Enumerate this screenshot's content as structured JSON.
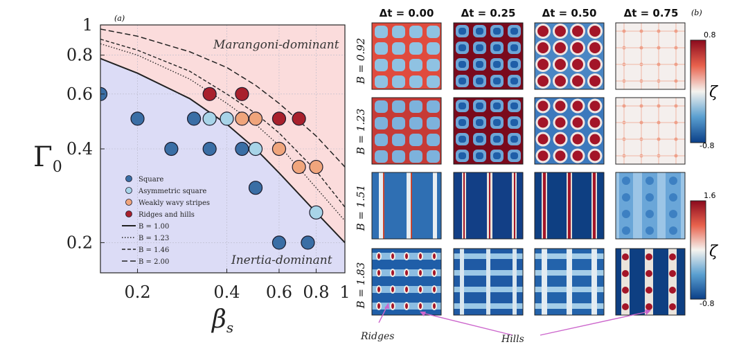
{
  "panel_a": {
    "label": "(a)",
    "region_top_label": "Marangoni-dominant",
    "region_bottom_label": "Inertia-dominant",
    "y_axis_label": "Γ",
    "y_axis_label_sub": "0",
    "x_axis_label": "β",
    "x_axis_label_sub": "s",
    "colors": {
      "top_region": "#fbdcdc",
      "bottom_region": "#dcdcf6"
    }
  },
  "panel_b": {
    "label": "(b)",
    "column_headers": [
      "Δt = 0.00",
      "Δt = 0.25",
      "Δt = 0.50",
      "Δt = 0.75"
    ],
    "row_labels": [
      "B = 0.92",
      "B = 1.23",
      "B = 1.51",
      "B = 1.83"
    ],
    "colorbar_top": {
      "symbol": "ζ",
      "max_label": "0.8",
      "min_label": "-0.8"
    },
    "colorbar_bottom": {
      "symbol": "ζ",
      "max_label": "1.6",
      "min_label": "-0.8"
    },
    "annotations": {
      "ridges": "Ridges",
      "hills": "Hills"
    },
    "colors": {
      "annotation_arrow": "#cc66cc"
    }
  },
  "chart_data": [
    {
      "type": "scatter",
      "x_scale": "log",
      "y_scale": "log",
      "xlim": [
        0.15,
        1.0
      ],
      "ylim": [
        0.16,
        1.0
      ],
      "xticks": [
        0.2,
        0.4,
        0.6,
        0.8,
        1.0
      ],
      "xtick_labels": [
        "0.2",
        "0.4",
        "0.6",
        "0.8",
        "1"
      ],
      "yticks": [
        0.2,
        0.4,
        0.6,
        0.8,
        1.0
      ],
      "ytick_labels": [
        "0.2",
        "0.4",
        "0.6",
        "0.8",
        "1"
      ],
      "grid": true,
      "legend_position": "lower-left",
      "series": [
        {
          "name": "Square",
          "kind": "marker",
          "color": "#3a6ea5",
          "points": [
            [
              0.15,
              0.6
            ],
            [
              0.2,
              0.5
            ],
            [
              0.26,
              0.4
            ],
            [
              0.31,
              0.5
            ],
            [
              0.35,
              0.4
            ],
            [
              0.45,
              0.4
            ],
            [
              0.5,
              0.3
            ],
            [
              0.6,
              0.2
            ],
            [
              0.75,
              0.2
            ]
          ]
        },
        {
          "name": "Asymmetric square",
          "kind": "marker",
          "color": "#a8d4e8",
          "points": [
            [
              0.35,
              0.5
            ],
            [
              0.4,
              0.5
            ],
            [
              0.5,
              0.4
            ],
            [
              0.8,
              0.25
            ]
          ]
        },
        {
          "name": "Weakly wavy stripes",
          "kind": "marker",
          "color": "#f0a57c",
          "points": [
            [
              0.45,
              0.5
            ],
            [
              0.5,
              0.5
            ],
            [
              0.6,
              0.4
            ],
            [
              0.7,
              0.35
            ],
            [
              0.8,
              0.35
            ]
          ]
        },
        {
          "name": "Ridges and hills",
          "kind": "marker",
          "color": "#a8202c",
          "points": [
            [
              0.35,
              0.6
            ],
            [
              0.45,
              0.6
            ],
            [
              0.6,
              0.5
            ],
            [
              0.7,
              0.5
            ]
          ]
        },
        {
          "name": "B = 1.00",
          "kind": "line",
          "style": "solid",
          "points": [
            [
              0.15,
              0.78
            ],
            [
              0.2,
              0.7
            ],
            [
              0.3,
              0.58
            ],
            [
              0.4,
              0.48
            ],
            [
              0.5,
              0.4
            ],
            [
              0.6,
              0.335
            ],
            [
              0.8,
              0.25
            ],
            [
              1.0,
              0.2
            ]
          ]
        },
        {
          "name": "B = 1.23",
          "kind": "line",
          "style": "dotted",
          "points": [
            [
              0.15,
              0.87
            ],
            [
              0.2,
              0.8
            ],
            [
              0.3,
              0.67
            ],
            [
              0.4,
              0.56
            ],
            [
              0.5,
              0.48
            ],
            [
              0.6,
              0.41
            ],
            [
              0.8,
              0.3
            ],
            [
              1.0,
              0.235
            ]
          ]
        },
        {
          "name": "B = 1.46",
          "kind": "line",
          "style": "densely-dashed",
          "points": [
            [
              0.15,
              0.9
            ],
            [
              0.2,
              0.83
            ],
            [
              0.3,
              0.71
            ],
            [
              0.4,
              0.6
            ],
            [
              0.5,
              0.52
            ],
            [
              0.6,
              0.45
            ],
            [
              0.8,
              0.34
            ],
            [
              1.0,
              0.26
            ]
          ]
        },
        {
          "name": "B = 2.00",
          "kind": "line",
          "style": "dashed",
          "points": [
            [
              0.15,
              0.97
            ],
            [
              0.2,
              0.92
            ],
            [
              0.3,
              0.82
            ],
            [
              0.4,
              0.73
            ],
            [
              0.5,
              0.64
            ],
            [
              0.6,
              0.56
            ],
            [
              0.8,
              0.44
            ],
            [
              1.0,
              0.35
            ]
          ]
        }
      ]
    },
    {
      "type": "heatmap",
      "rows": [
        "B = 0.92",
        "B = 1.23",
        "B = 1.51",
        "B = 1.83"
      ],
      "columns": [
        "Δt = 0.00",
        "Δt = 0.25",
        "Δt = 0.50",
        "Δt = 0.75"
      ],
      "colorbar_ranges": [
        [
          -0.8,
          0.8
        ],
        [
          -0.8,
          1.6
        ]
      ]
    }
  ]
}
